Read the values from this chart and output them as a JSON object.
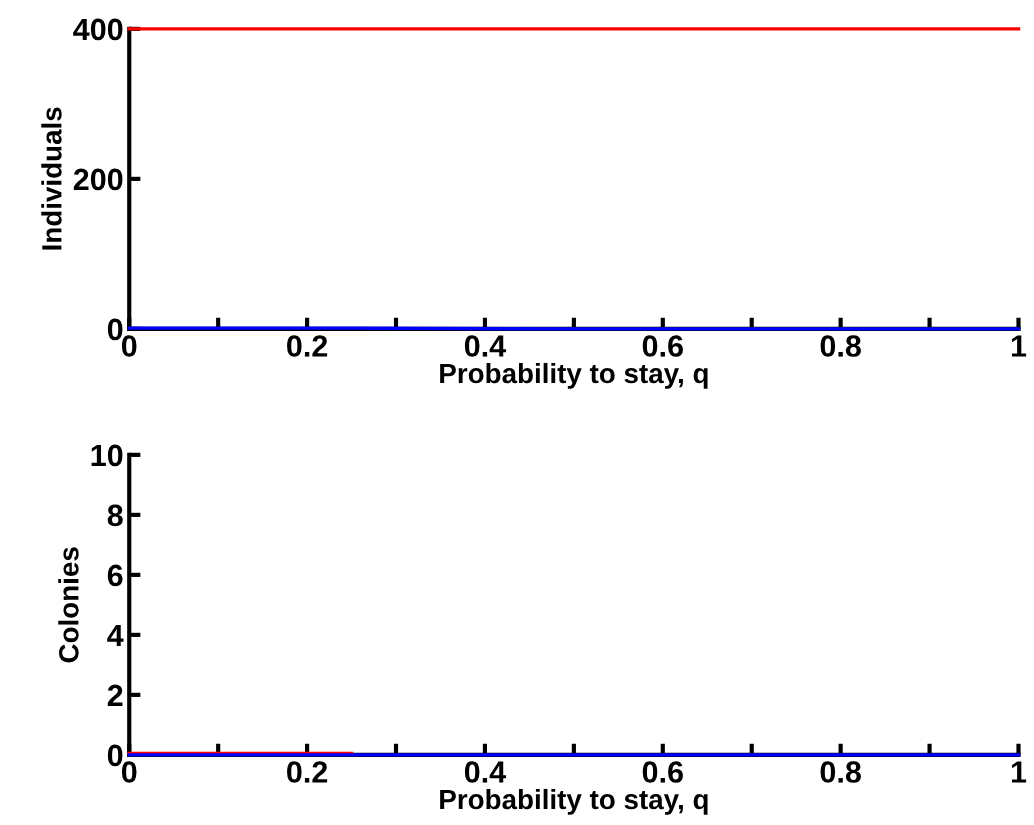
{
  "chart_data": [
    {
      "type": "line",
      "xlabel": "Probability to stay, q",
      "ylabel": "Individuals",
      "x": [
        0,
        0.25,
        0.5,
        0.75,
        1
      ],
      "series": [
        {
          "color": "#ff0000",
          "values": [
            400,
            400,
            400,
            400,
            400
          ]
        },
        {
          "color": "#0000ff",
          "values": [
            1,
            1,
            0,
            0,
            0
          ]
        }
      ],
      "xlim": [
        0,
        1
      ],
      "ylim": [
        0,
        400
      ],
      "yticks": [
        0,
        200,
        400
      ],
      "xticks": [
        0,
        {
          "value": 0.1,
          "label": null
        },
        0.2,
        {
          "value": 0.3,
          "label": null
        },
        0.4,
        {
          "value": 0.5,
          "label": null
        },
        0.6,
        {
          "value": 0.7,
          "label": null
        },
        0.8,
        {
          "value": 0.9,
          "label": null
        },
        1
      ],
      "grid": false,
      "legend": false
    },
    {
      "type": "line",
      "xlabel": "Probability to stay, q",
      "ylabel": "Colonies",
      "x": [
        0,
        0.25,
        0.5,
        0.75,
        1
      ],
      "series": [
        {
          "color": "#ff0000",
          "values": [
            0.05,
            0.05,
            null,
            null,
            null
          ]
        },
        {
          "color": "#0000ff",
          "values": [
            0,
            0,
            0,
            0,
            0
          ]
        }
      ],
      "xlim": [
        0,
        1
      ],
      "ylim": [
        0,
        10
      ],
      "yticks": [
        0,
        2,
        4,
        6,
        8,
        10
      ],
      "xticks": [
        0,
        {
          "value": 0.1,
          "label": null
        },
        0.2,
        {
          "value": 0.3,
          "label": null
        },
        0.4,
        {
          "value": 0.5,
          "label": null
        },
        0.6,
        {
          "value": 0.7,
          "label": null
        },
        0.8,
        {
          "value": 0.9,
          "label": null
        },
        1
      ],
      "grid": false,
      "legend": false
    }
  ]
}
